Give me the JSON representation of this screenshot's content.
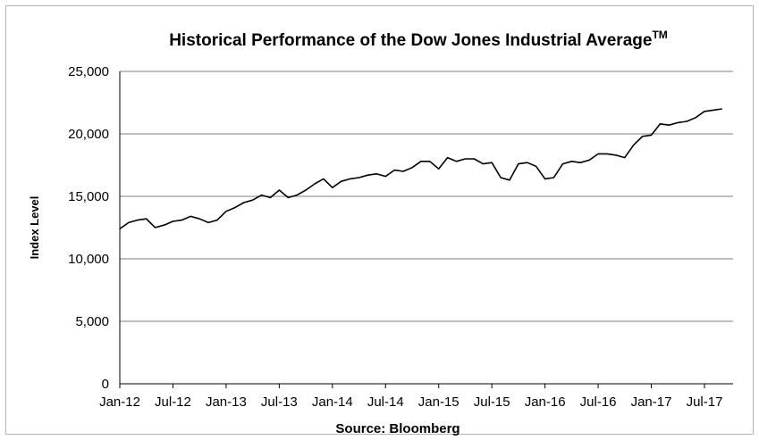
{
  "chart_data": {
    "type": "line",
    "title": "Historical Performance of the Dow Jones Industrial Average",
    "title_mark": "TM",
    "ylabel": "Index Level",
    "xlabel": "",
    "source": "Source: Bloomberg",
    "ylim": [
      0,
      25000
    ],
    "y_ticks": [
      0,
      5000,
      10000,
      15000,
      20000,
      25000
    ],
    "y_tick_labels": [
      "0",
      "5,000",
      "10,000",
      "15,000",
      "20,000",
      "25,000"
    ],
    "x_tick_labels": [
      "Jan-12",
      "Jul-12",
      "Jan-13",
      "Jul-13",
      "Jan-14",
      "Jul-14",
      "Jan-15",
      "Jul-15",
      "Jan-16",
      "Jul-16",
      "Jan-17",
      "Jul-17"
    ],
    "grid": true,
    "line_color": "#000000",
    "series": [
      {
        "x": [
          "2012-01",
          "2012-02",
          "2012-03",
          "2012-04",
          "2012-05",
          "2012-06",
          "2012-07",
          "2012-08",
          "2012-09",
          "2012-10",
          "2012-11",
          "2012-12",
          "2013-01",
          "2013-02",
          "2013-03",
          "2013-04",
          "2013-05",
          "2013-06",
          "2013-07",
          "2013-08",
          "2013-09",
          "2013-10",
          "2013-11",
          "2013-12",
          "2014-01",
          "2014-02",
          "2014-03",
          "2014-04",
          "2014-05",
          "2014-06",
          "2014-07",
          "2014-08",
          "2014-09",
          "2014-10",
          "2014-11",
          "2014-12",
          "2015-01",
          "2015-02",
          "2015-03",
          "2015-04",
          "2015-05",
          "2015-06",
          "2015-07",
          "2015-08",
          "2015-09",
          "2015-10",
          "2015-11",
          "2015-12",
          "2016-01",
          "2016-02",
          "2016-03",
          "2016-04",
          "2016-05",
          "2016-06",
          "2016-07",
          "2016-08",
          "2016-09",
          "2016-10",
          "2016-11",
          "2016-12",
          "2017-01",
          "2017-02",
          "2017-03",
          "2017-04",
          "2017-05",
          "2017-06",
          "2017-07",
          "2017-08",
          "2017-09"
        ],
        "values": [
          12400,
          12900,
          13100,
          13200,
          12500,
          12700,
          13000,
          13100,
          13400,
          13200,
          12900,
          13100,
          13800,
          14100,
          14500,
          14700,
          15100,
          14900,
          15500,
          14900,
          15100,
          15500,
          16000,
          16400,
          15700,
          16200,
          16400,
          16500,
          16700,
          16800,
          16600,
          17100,
          17000,
          17300,
          17800,
          17800,
          17200,
          18100,
          17800,
          18000,
          18000,
          17600,
          17700,
          16500,
          16300,
          17600,
          17700,
          17400,
          16400,
          16500,
          17600,
          17800,
          17700,
          17900,
          18400,
          18400,
          18300,
          18100,
          19100,
          19800,
          19900,
          20800,
          20700,
          20900,
          21000,
          21300,
          21800,
          21900,
          22000
        ]
      }
    ]
  }
}
